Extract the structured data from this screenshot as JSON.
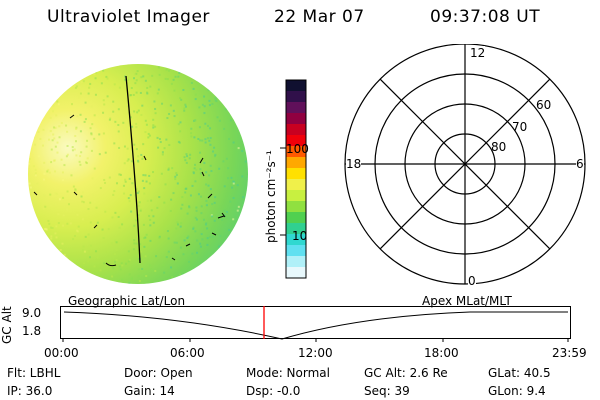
{
  "header": {
    "instrument": "Ultraviolet Imager",
    "date": "22 Mar 07",
    "time": "09:37:08 UT"
  },
  "colorbar": {
    "label": "photon cm⁻²s⁻¹",
    "ticks": [
      "100",
      "10"
    ],
    "colors": [
      "#101030",
      "#30104a",
      "#60105a",
      "#900040",
      "#c80020",
      "#f0000a",
      "#ff5a00",
      "#ffa800",
      "#ffe000",
      "#f0f04a",
      "#c8f040",
      "#90e040",
      "#50d050",
      "#30d090",
      "#30d8d0",
      "#60e0f0",
      "#b0f0f8",
      "#e8f8fc"
    ]
  },
  "polar": {
    "labels": {
      "top": "12",
      "left": "18",
      "right": "6",
      "bottom": "0"
    },
    "lat_labels": [
      "60",
      "70",
      "80"
    ]
  },
  "timeline": {
    "left_title": "Geographic Lat/Lon",
    "right_title": "Apex MLat/MLT",
    "y_label": "GC Alt",
    "y_ticks": [
      "9.0",
      "1.8"
    ],
    "x_ticks": [
      "00:00",
      "06:00",
      "12:00",
      "18:00",
      "23:59"
    ],
    "current_marker_color": "#ff0000"
  },
  "info": {
    "flt": "Flt: LBHL",
    "ip": "IP: 36.0",
    "door": "Door: Open",
    "gain": "Gain: 14",
    "mode": "Mode: Normal",
    "dsp": "Dsp:   -0.0",
    "gcalt": "GC Alt: 2.6 Re",
    "seq": "Seq: 39",
    "glat": "GLat:   40.5",
    "glon": "GLon:    9.4"
  }
}
